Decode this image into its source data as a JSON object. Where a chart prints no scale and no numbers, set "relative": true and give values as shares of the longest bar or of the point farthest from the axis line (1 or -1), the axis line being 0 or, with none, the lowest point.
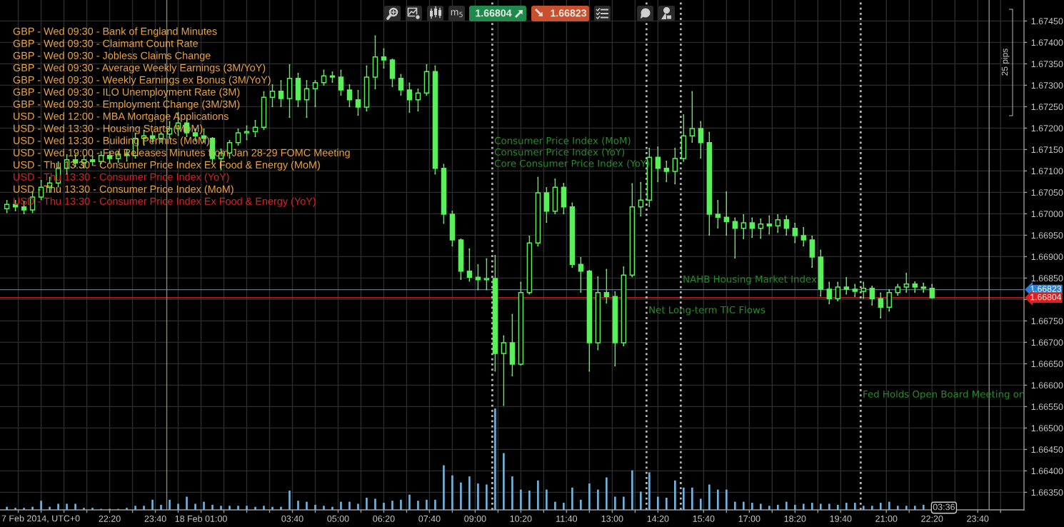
{
  "chart_data": [
    {
      "type": "candlestick",
      "x": [
        "2014-02-17T19:20",
        "2014-02-17T19:35",
        "2014-02-17T19:50",
        "2014-02-17T20:05",
        "2014-02-17T20:20",
        "2014-02-17T20:35",
        "2014-02-17T20:50",
        "2014-02-17T21:05",
        "2014-02-17T21:20",
        "2014-02-17T21:35",
        "2014-02-17T21:50",
        "2014-02-17T22:05",
        "2014-02-17T22:20",
        "2014-02-17T22:35",
        "2014-02-17T22:50",
        "2014-02-17T23:05",
        "2014-02-17T23:20",
        "2014-02-17T23:35",
        "2014-02-17T23:50",
        "2014-02-18T00:05",
        "2014-02-18T00:20",
        "2014-02-18T00:35",
        "2014-02-18T00:50",
        "2014-02-18T01:05",
        "2014-02-18T01:20",
        "2014-02-18T01:35",
        "2014-02-18T01:50",
        "2014-02-18T02:05",
        "2014-02-18T02:20",
        "2014-02-18T02:35",
        "2014-02-18T02:50",
        "2014-02-18T03:05",
        "2014-02-18T03:20",
        "2014-02-18T03:35",
        "2014-02-18T03:50",
        "2014-02-18T04:05",
        "2014-02-18T04:20",
        "2014-02-18T04:35",
        "2014-02-18T04:50",
        "2014-02-18T05:05",
        "2014-02-18T05:20",
        "2014-02-18T05:35",
        "2014-02-18T05:50",
        "2014-02-18T06:05",
        "2014-02-18T06:20",
        "2014-02-18T06:35",
        "2014-02-18T06:50",
        "2014-02-18T07:05",
        "2014-02-18T07:20",
        "2014-02-18T07:35",
        "2014-02-18T07:50",
        "2014-02-18T08:05",
        "2014-02-18T08:20",
        "2014-02-18T08:35",
        "2014-02-18T08:50",
        "2014-02-18T09:05",
        "2014-02-18T09:20",
        "2014-02-18T09:35",
        "2014-02-18T09:50",
        "2014-02-18T10:05",
        "2014-02-18T10:20",
        "2014-02-18T10:35",
        "2014-02-18T10:50",
        "2014-02-18T11:05",
        "2014-02-18T11:20",
        "2014-02-18T11:35",
        "2014-02-18T11:50",
        "2014-02-18T12:05",
        "2014-02-18T12:20",
        "2014-02-18T12:35",
        "2014-02-18T12:50",
        "2014-02-18T13:05",
        "2014-02-18T13:20",
        "2014-02-18T13:35",
        "2014-02-18T13:50",
        "2014-02-18T14:05",
        "2014-02-18T14:20",
        "2014-02-18T14:35",
        "2014-02-18T14:50",
        "2014-02-18T15:05",
        "2014-02-18T15:20",
        "2014-02-18T15:35",
        "2014-02-18T15:50",
        "2014-02-18T16:05",
        "2014-02-18T16:20",
        "2014-02-18T16:35",
        "2014-02-18T16:50",
        "2014-02-18T17:05",
        "2014-02-18T17:20",
        "2014-02-18T17:35",
        "2014-02-18T17:50",
        "2014-02-18T18:05",
        "2014-02-18T18:20",
        "2014-02-18T18:35",
        "2014-02-18T18:50",
        "2014-02-18T19:05",
        "2014-02-18T19:20",
        "2014-02-18T19:35",
        "2014-02-18T19:50",
        "2014-02-18T20:05",
        "2014-02-18T20:20",
        "2014-02-18T20:35",
        "2014-02-18T20:50",
        "2014-02-18T21:05",
        "2014-02-18T21:20",
        "2014-02-18T21:35",
        "2014-02-18T21:50",
        "2014-02-18T22:05",
        "2014-02-18T22:20"
      ],
      "ohlc": [
        [
          1.67012,
          1.67032,
          1.67002,
          1.67022
        ],
        [
          1.67022,
          1.67032,
          1.67006,
          1.67016
        ],
        [
          1.67016,
          1.67029,
          1.66999,
          1.67009
        ],
        [
          1.67009,
          1.67052,
          1.67002,
          1.67039
        ],
        [
          1.67039,
          1.67079,
          1.67032,
          1.67062
        ],
        [
          1.67062,
          1.67086,
          1.67049,
          1.67072
        ],
        [
          1.67072,
          1.67122,
          1.67062,
          1.67106
        ],
        [
          1.67106,
          1.67139,
          1.67092,
          1.67126
        ],
        [
          1.67126,
          1.67139,
          1.67109,
          1.67119
        ],
        [
          1.67119,
          1.67136,
          1.67106,
          1.67126
        ],
        [
          1.67126,
          1.67136,
          1.67112,
          1.67122
        ],
        [
          1.67122,
          1.67146,
          1.67116,
          1.67136
        ],
        [
          1.67136,
          1.67146,
          1.67119,
          1.67129
        ],
        [
          1.67129,
          1.67146,
          1.67119,
          1.67139
        ],
        [
          1.67139,
          1.67149,
          1.67122,
          1.67136
        ],
        [
          1.67136,
          1.67189,
          1.67129,
          1.67176
        ],
        [
          1.67176,
          1.67196,
          1.67159,
          1.67182
        ],
        [
          1.67182,
          1.67192,
          1.67166,
          1.67176
        ],
        [
          1.67176,
          1.67191,
          1.67166,
          1.67186
        ],
        [
          1.67186,
          1.67216,
          1.67176,
          1.67199
        ],
        [
          1.67199,
          1.67237,
          1.67182,
          1.67212
        ],
        [
          1.67212,
          1.67224,
          1.67179,
          1.67189
        ],
        [
          1.67189,
          1.67199,
          1.67169,
          1.67182
        ],
        [
          1.67182,
          1.67199,
          1.67166,
          1.67176
        ],
        [
          1.67176,
          1.67179,
          1.67116,
          1.67129
        ],
        [
          1.67129,
          1.67152,
          1.67102,
          1.67142
        ],
        [
          1.67142,
          1.67172,
          1.67129,
          1.67166
        ],
        [
          1.67166,
          1.67199,
          1.67159,
          1.67189
        ],
        [
          1.67189,
          1.67206,
          1.67172,
          1.67192
        ],
        [
          1.67192,
          1.67219,
          1.67179,
          1.67202
        ],
        [
          1.67202,
          1.67286,
          1.67196,
          1.67272
        ],
        [
          1.67272,
          1.67302,
          1.67249,
          1.67286
        ],
        [
          1.67286,
          1.67312,
          1.67249,
          1.67269
        ],
        [
          1.67269,
          1.67349,
          1.67224,
          1.67316
        ],
        [
          1.67316,
          1.67329,
          1.67249,
          1.67266
        ],
        [
          1.67266,
          1.67312,
          1.67224,
          1.67292
        ],
        [
          1.67292,
          1.67312,
          1.67249,
          1.67306
        ],
        [
          1.67306,
          1.67336,
          1.67299,
          1.67322
        ],
        [
          1.67322,
          1.67332,
          1.67306,
          1.67319
        ],
        [
          1.67319,
          1.67336,
          1.67276,
          1.67289
        ],
        [
          1.67289,
          1.67302,
          1.67249,
          1.67266
        ],
        [
          1.67266,
          1.67289,
          1.67229,
          1.67249
        ],
        [
          1.67249,
          1.67346,
          1.67239,
          1.67319
        ],
        [
          1.67319,
          1.67416,
          1.67291,
          1.67366
        ],
        [
          1.67366,
          1.67386,
          1.67339,
          1.67359
        ],
        [
          1.67359,
          1.67362,
          1.67296,
          1.67316
        ],
        [
          1.67316,
          1.67326,
          1.67276,
          1.67289
        ],
        [
          1.67289,
          1.67306,
          1.67236,
          1.67266
        ],
        [
          1.67266,
          1.67292,
          1.67239,
          1.67282
        ],
        [
          1.67282,
          1.67349,
          1.67276,
          1.67332
        ],
        [
          1.67332,
          1.67346,
          1.67092,
          1.67106
        ],
        [
          1.67106,
          1.67116,
          1.66977,
          1.66999
        ],
        [
          1.66999,
          1.67007,
          1.66924,
          1.66939
        ],
        [
          1.66939,
          1.66942,
          1.66846,
          1.66866
        ],
        [
          1.66866,
          1.66919,
          1.66842,
          1.66852
        ],
        [
          1.66852,
          1.66882,
          1.66822,
          1.66846
        ],
        [
          1.66846,
          1.66896,
          1.66822,
          1.66849
        ],
        [
          1.66849,
          1.66904,
          1.66632,
          1.66674
        ],
        [
          1.66674,
          1.66716,
          1.66552,
          1.66699
        ],
        [
          1.66699,
          1.66766,
          1.66621,
          1.66649
        ],
        [
          1.66649,
          1.66841,
          1.66646,
          1.66816
        ],
        [
          1.66816,
          1.66949,
          1.66812,
          1.66932
        ],
        [
          1.66932,
          1.67086,
          1.66924,
          1.67049
        ],
        [
          1.67049,
          1.67062,
          1.66979,
          1.67006
        ],
        [
          1.67006,
          1.67082,
          1.66999,
          1.67062
        ],
        [
          1.67062,
          1.67072,
          1.66999,
          1.67016
        ],
        [
          1.67016,
          1.67026,
          1.66874,
          1.66882
        ],
        [
          1.66882,
          1.66899,
          1.66816,
          1.66866
        ],
        [
          1.66866,
          1.66869,
          1.66632,
          1.66699
        ],
        [
          1.66699,
          1.66854,
          1.66682,
          1.66816
        ],
        [
          1.66816,
          1.66871,
          1.66791,
          1.66807
        ],
        [
          1.66807,
          1.66819,
          1.66644,
          1.66699
        ],
        [
          1.66699,
          1.66877,
          1.66691,
          1.66857
        ],
        [
          1.66857,
          1.67071,
          1.66852,
          1.67016
        ],
        [
          1.67016,
          1.67074,
          1.66994,
          1.67032
        ],
        [
          1.67032,
          1.67154,
          1.67016,
          1.67132
        ],
        [
          1.67132,
          1.67157,
          1.67074,
          1.67106
        ],
        [
          1.67106,
          1.67124,
          1.67074,
          1.67099
        ],
        [
          1.67099,
          1.67154,
          1.67069,
          1.67129
        ],
        [
          1.67129,
          1.67232,
          1.67122,
          1.67182
        ],
        [
          1.67182,
          1.67286,
          1.67166,
          1.67199
        ],
        [
          1.67199,
          1.67216,
          1.67129,
          1.67166
        ],
        [
          1.67166,
          1.67191,
          1.66949,
          1.66999
        ],
        [
          1.66999,
          1.67032,
          1.66966,
          1.66992
        ],
        [
          1.66992,
          1.67052,
          1.66949,
          1.66982
        ],
        [
          1.66982,
          1.66991,
          1.66896,
          1.66966
        ],
        [
          1.66966,
          1.66999,
          1.66941,
          1.66979
        ],
        [
          1.66979,
          1.66991,
          1.66944,
          1.66966
        ],
        [
          1.66966,
          1.66989,
          1.66942,
          1.66976
        ],
        [
          1.66976,
          1.66996,
          1.66952,
          1.66972
        ],
        [
          1.66972,
          1.66999,
          1.66956,
          1.66986
        ],
        [
          1.66986,
          1.66996,
          1.66949,
          1.66966
        ],
        [
          1.66966,
          1.66979,
          1.66932,
          1.66949
        ],
        [
          1.66949,
          1.66969,
          1.66924,
          1.66939
        ],
        [
          1.66939,
          1.66949,
          1.66874,
          1.66899
        ],
        [
          1.66899,
          1.66916,
          1.66807,
          1.66824
        ],
        [
          1.66824,
          1.66841,
          1.66789,
          1.66802
        ],
        [
          1.66802,
          1.66841,
          1.66796,
          1.66829
        ],
        [
          1.66829,
          1.66852,
          1.66812,
          1.66824
        ],
        [
          1.66824,
          1.66836,
          1.66806,
          1.66819
        ],
        [
          1.66819,
          1.66841,
          1.66802,
          1.66826
        ],
        [
          1.66826,
          1.66832,
          1.66786,
          1.66802
        ],
        [
          1.66802,
          1.66816,
          1.66756,
          1.66782
        ],
        [
          1.66782,
          1.66824,
          1.66772,
          1.66816
        ],
        [
          1.66816,
          1.66836,
          1.66809,
          1.66829
        ],
        [
          1.66829,
          1.66862,
          1.66816,
          1.66836
        ],
        [
          1.66836,
          1.66842,
          1.66816,
          1.66829
        ],
        [
          1.66829,
          1.66839,
          1.66816,
          1.66826
        ],
        [
          1.66826,
          1.66836,
          1.66802,
          1.66804
        ]
      ],
      "color": "#5bef5b",
      "xlim": [
        "2014-02-17T19:08",
        "2014-02-19T01:01"
      ],
      "ylim": [
        1.66309,
        1.67499
      ],
      "xticks": [
        {
          "value": "2014-02-17T19:40",
          "label": null
        },
        {
          "value": "2014-02-17T20:20",
          "label": null
        },
        {
          "value": "2014-02-17T21:00",
          "label": null
        },
        {
          "value": "2014-02-17T21:40",
          "label": null
        },
        {
          "value": "2014-02-17T22:20",
          "label": "22:20"
        },
        {
          "value": "2014-02-17T23:00",
          "label": null
        },
        {
          "value": "2014-02-17T23:40",
          "label": "23:40"
        },
        {
          "value": "2014-02-18T00:20",
          "label": null
        },
        {
          "value": "2014-02-18T01:00",
          "label": "18 Feb 01:00"
        },
        {
          "value": "2014-02-18T01:40",
          "label": null
        },
        {
          "value": "2014-02-18T02:20",
          "label": null
        },
        {
          "value": "2014-02-18T03:00",
          "label": null
        },
        {
          "value": "2014-02-18T03:40",
          "label": "03:40"
        },
        {
          "value": "2014-02-18T04:20",
          "label": null
        },
        {
          "value": "2014-02-18T05:00",
          "label": "05:00"
        },
        {
          "value": "2014-02-18T05:40",
          "label": null
        },
        {
          "value": "2014-02-18T06:20",
          "label": "06:20"
        },
        {
          "value": "2014-02-18T07:00",
          "label": null
        },
        {
          "value": "2014-02-18T07:40",
          "label": "07:40"
        },
        {
          "value": "2014-02-18T08:20",
          "label": null
        },
        {
          "value": "2014-02-18T09:00",
          "label": "09:00"
        },
        {
          "value": "2014-02-18T09:40",
          "label": null
        },
        {
          "value": "2014-02-18T10:20",
          "label": "10:20"
        },
        {
          "value": "2014-02-18T11:00",
          "label": null
        },
        {
          "value": "2014-02-18T11:40",
          "label": "11:40"
        },
        {
          "value": "2014-02-18T12:20",
          "label": null
        },
        {
          "value": "2014-02-18T13:00",
          "label": "13:00"
        },
        {
          "value": "2014-02-18T13:40",
          "label": null
        },
        {
          "value": "2014-02-18T14:20",
          "label": "14:20"
        },
        {
          "value": "2014-02-18T15:40",
          "label": "15:40"
        },
        {
          "value": "2014-02-18T16:20",
          "label": null
        },
        {
          "value": "2014-02-18T17:00",
          "label": "17:00"
        },
        {
          "value": "2014-02-18T17:40",
          "label": null
        },
        {
          "value": "2014-02-18T18:20",
          "label": "18:20"
        },
        {
          "value": "2014-02-18T19:00",
          "label": null
        },
        {
          "value": "2014-02-18T19:40",
          "label": "19:40"
        },
        {
          "value": "2014-02-18T21:00",
          "label": "21:00"
        },
        {
          "value": "2014-02-18T21:40",
          "label": null
        },
        {
          "value": "2014-02-18T22:20",
          "label": "22:20"
        },
        {
          "value": "2014-02-18T23:00",
          "label": null
        },
        {
          "value": "2014-02-18T23:40",
          "label": "23:40"
        },
        {
          "value": "2014-02-19T00:20",
          "label": null
        }
      ],
      "yticks": [
        {
          "value": 1.6635,
          "label": "1.66350"
        },
        {
          "value": 1.664,
          "label": "1.66400"
        },
        {
          "value": 1.6645,
          "label": "1.66450"
        },
        {
          "value": 1.665,
          "label": "1.66500"
        },
        {
          "value": 1.6655,
          "label": "1.66550"
        },
        {
          "value": 1.666,
          "label": "1.66600"
        },
        {
          "value": 1.6665,
          "label": "1.66650"
        },
        {
          "value": 1.667,
          "label": "1.66700"
        },
        {
          "value": 1.6675,
          "label": "1.66750"
        },
        {
          "value": 1.668,
          "label": null
        },
        {
          "value": 1.6685,
          "label": "1.66850"
        },
        {
          "value": 1.669,
          "label": "1.66900"
        },
        {
          "value": 1.6695,
          "label": "1.66950"
        },
        {
          "value": 1.67,
          "label": "1.67000"
        },
        {
          "value": 1.6705,
          "label": "1.67050"
        },
        {
          "value": 1.671,
          "label": "1.67100"
        },
        {
          "value": 1.6715,
          "label": "1.67150"
        },
        {
          "value": 1.672,
          "label": "1.67200"
        },
        {
          "value": 1.6725,
          "label": "1.67250"
        },
        {
          "value": 1.673,
          "label": "1.67300"
        },
        {
          "value": 1.6735,
          "label": "1.67350"
        },
        {
          "value": 1.674,
          "label": "1.67400"
        },
        {
          "value": 1.6745,
          "label": "1.67450"
        }
      ],
      "grid": true,
      "ref_lines": [
        {
          "axis": "y",
          "value": 1.66823,
          "label": "1.66823",
          "color": "#2a7fd4"
        },
        {
          "axis": "y",
          "value": 1.66804,
          "label": "1.66804",
          "color": "#e21d1d"
        },
        {
          "axis": "x",
          "value": "2014-02-18T00:00",
          "color": "#8a8470"
        },
        {
          "axis": "x",
          "value": "2014-02-19T00:00",
          "color": "#8a8a8a"
        },
        {
          "axis": "x",
          "value": "2014-02-18T09:30",
          "label": "Consumer Price Index (MoM)\nConsumer Price Index (YoY)\nCore Consumer Price Index (YoY)",
          "color": "#b4b4b4",
          "line_style": "dotted"
        },
        {
          "axis": "x",
          "value": "2014-02-18T14:00",
          "label": "Net Long-term TIC Flows",
          "color": "#b4b4b4",
          "line_style": "dotted"
        },
        {
          "axis": "x",
          "value": "2014-02-18T15:00",
          "label": "NAHB Housing Market Index",
          "color": "#b4b4b4",
          "line_style": "dotted"
        },
        {
          "axis": "x",
          "value": "2014-02-18T20:15",
          "label": "Fed Holds Open Board Meeting on",
          "color": "#b4b4b4",
          "line_style": "dotted"
        }
      ],
      "annotations": [
        "GBP - Wed 09:30 - Bank of England Minutes",
        "GBP - Wed 09:30 - Claimant Count Rate",
        "GBP - Wed 09:30 - Jobless Claims Change",
        "GBP - Wed 09:30 - Average Weekly Earnings (3M/YoY)",
        "GBP - Wed 09:30 - Weekly Earnings ex Bonus (3M/YoY)",
        "GBP - Wed 09:30 - ILO Unemployment Rate (3M)",
        "GBP - Wed 09:30 - Employment Change (3M/3M)",
        "USD - Wed 12:00 - MBA Mortgage Applications",
        "USD - Wed 13:30 - Housing Starts (MoM)",
        "USD - Wed 13:30 - Building Permits (MoM)",
        "USD - Wed 19:00 - Fed Releases Minutes from Jan 28-29 FOMC Meeting",
        "USD - Thu 13:30 - Consumer Price Index Ex Food & Energy (MoM)",
        "USD - Thu 13:30 - Consumer Price Index (YoY)",
        "USD - Thu 13:30 - Consumer Price Index (MoM)",
        "USD - Thu 13:30 - Consumer Price Index Ex Food & Energy (YoY)",
        "25 pips",
        "7 Feb 2014, UTC+0",
        "03:36",
        "m$_{5}$",
        "1.66804",
        "1.66823"
      ]
    },
    {
      "type": "bar",
      "relative": true,
      "x": [
        "2014-02-17T19:20",
        "2014-02-17T19:35",
        "2014-02-17T19:50",
        "2014-02-17T20:05",
        "2014-02-17T20:20",
        "2014-02-17T20:35",
        "2014-02-17T20:50",
        "2014-02-17T21:05",
        "2014-02-17T21:20",
        "2014-02-17T21:35",
        "2014-02-17T21:50",
        "2014-02-17T22:05",
        "2014-02-17T22:20",
        "2014-02-17T22:35",
        "2014-02-17T22:50",
        "2014-02-17T23:05",
        "2014-02-17T23:20",
        "2014-02-17T23:35",
        "2014-02-17T23:50",
        "2014-02-18T00:05",
        "2014-02-18T00:20",
        "2014-02-18T00:35",
        "2014-02-18T00:50",
        "2014-02-18T01:05",
        "2014-02-18T01:20",
        "2014-02-18T01:35",
        "2014-02-18T01:50",
        "2014-02-18T02:05",
        "2014-02-18T02:20",
        "2014-02-18T02:35",
        "2014-02-18T02:50",
        "2014-02-18T03:05",
        "2014-02-18T03:20",
        "2014-02-18T03:35",
        "2014-02-18T03:50",
        "2014-02-18T04:05",
        "2014-02-18T04:20",
        "2014-02-18T04:35",
        "2014-02-18T04:50",
        "2014-02-18T05:05",
        "2014-02-18T05:20",
        "2014-02-18T05:35",
        "2014-02-18T05:50",
        "2014-02-18T06:05",
        "2014-02-18T06:20",
        "2014-02-18T06:35",
        "2014-02-18T06:50",
        "2014-02-18T07:05",
        "2014-02-18T07:20",
        "2014-02-18T07:35",
        "2014-02-18T07:50",
        "2014-02-18T08:05",
        "2014-02-18T08:20",
        "2014-02-18T08:35",
        "2014-02-18T08:50",
        "2014-02-18T09:05",
        "2014-02-18T09:20",
        "2014-02-18T09:35",
        "2014-02-18T09:50",
        "2014-02-18T10:05",
        "2014-02-18T10:20",
        "2014-02-18T10:35",
        "2014-02-18T10:50",
        "2014-02-18T11:05",
        "2014-02-18T11:20",
        "2014-02-18T11:35",
        "2014-02-18T11:50",
        "2014-02-18T12:05",
        "2014-02-18T12:20",
        "2014-02-18T12:35",
        "2014-02-18T12:50",
        "2014-02-18T13:05",
        "2014-02-18T13:20",
        "2014-02-18T13:35",
        "2014-02-18T13:50",
        "2014-02-18T14:05",
        "2014-02-18T14:20",
        "2014-02-18T14:35",
        "2014-02-18T14:50",
        "2014-02-18T15:05",
        "2014-02-18T15:20",
        "2014-02-18T15:35",
        "2014-02-18T15:50",
        "2014-02-18T16:05",
        "2014-02-18T16:20",
        "2014-02-18T16:35",
        "2014-02-18T16:50",
        "2014-02-18T17:05",
        "2014-02-18T17:20",
        "2014-02-18T17:35",
        "2014-02-18T17:50",
        "2014-02-18T18:05",
        "2014-02-18T18:20",
        "2014-02-18T18:35",
        "2014-02-18T18:50",
        "2014-02-18T19:05",
        "2014-02-18T19:20",
        "2014-02-18T19:35",
        "2014-02-18T19:50",
        "2014-02-18T20:05",
        "2014-02-18T20:20",
        "2014-02-18T20:35",
        "2014-02-18T20:50",
        "2014-02-18T21:05",
        "2014-02-18T21:20",
        "2014-02-18T21:35",
        "2014-02-18T21:50",
        "2014-02-18T22:05"
      ],
      "values": [
        0.03,
        0.02,
        0.02,
        0.03,
        0.09,
        0.03,
        0.06,
        0.06,
        0.06,
        0.02,
        0.02,
        0.01,
        0.01,
        0.01,
        0.02,
        0.04,
        0.04,
        0.1,
        0.05,
        0.1,
        0.06,
        0.13,
        0.06,
        0.08,
        0.05,
        0.04,
        0.04,
        0.04,
        0.04,
        0.03,
        0.04,
        0.03,
        0.03,
        0.19,
        0.09,
        0.08,
        0.05,
        0.04,
        0.03,
        0.08,
        0.08,
        0.06,
        0.12,
        0.11,
        0.07,
        0.09,
        0.1,
        0.15,
        0.09,
        0.1,
        0.1,
        0.44,
        0.34,
        0.27,
        0.33,
        0.26,
        0.25,
        1.0,
        0.56,
        0.33,
        0.2,
        0.19,
        0.29,
        0.2,
        0.08,
        0.07,
        0.22,
        0.1,
        0.26,
        0.2,
        0.32,
        0.13,
        0.13,
        0.39,
        0.18,
        0.37,
        0.13,
        0.12,
        0.29,
        0.22,
        0.22,
        0.11,
        0.25,
        0.2,
        0.2,
        0.08,
        0.08,
        0.07,
        0.06,
        0.04,
        0.05,
        0.08,
        0.05,
        0.06,
        0.07,
        0.06,
        0.06,
        0.05,
        0.07,
        0.07,
        0.04,
        0.04,
        0.07,
        0.08,
        0.04,
        0.04,
        0.04,
        0.05
      ],
      "color": "#76b3dc",
      "xlim": [
        "2014-02-17T19:08",
        "2014-02-19T01:01"
      ]
    }
  ]
}
